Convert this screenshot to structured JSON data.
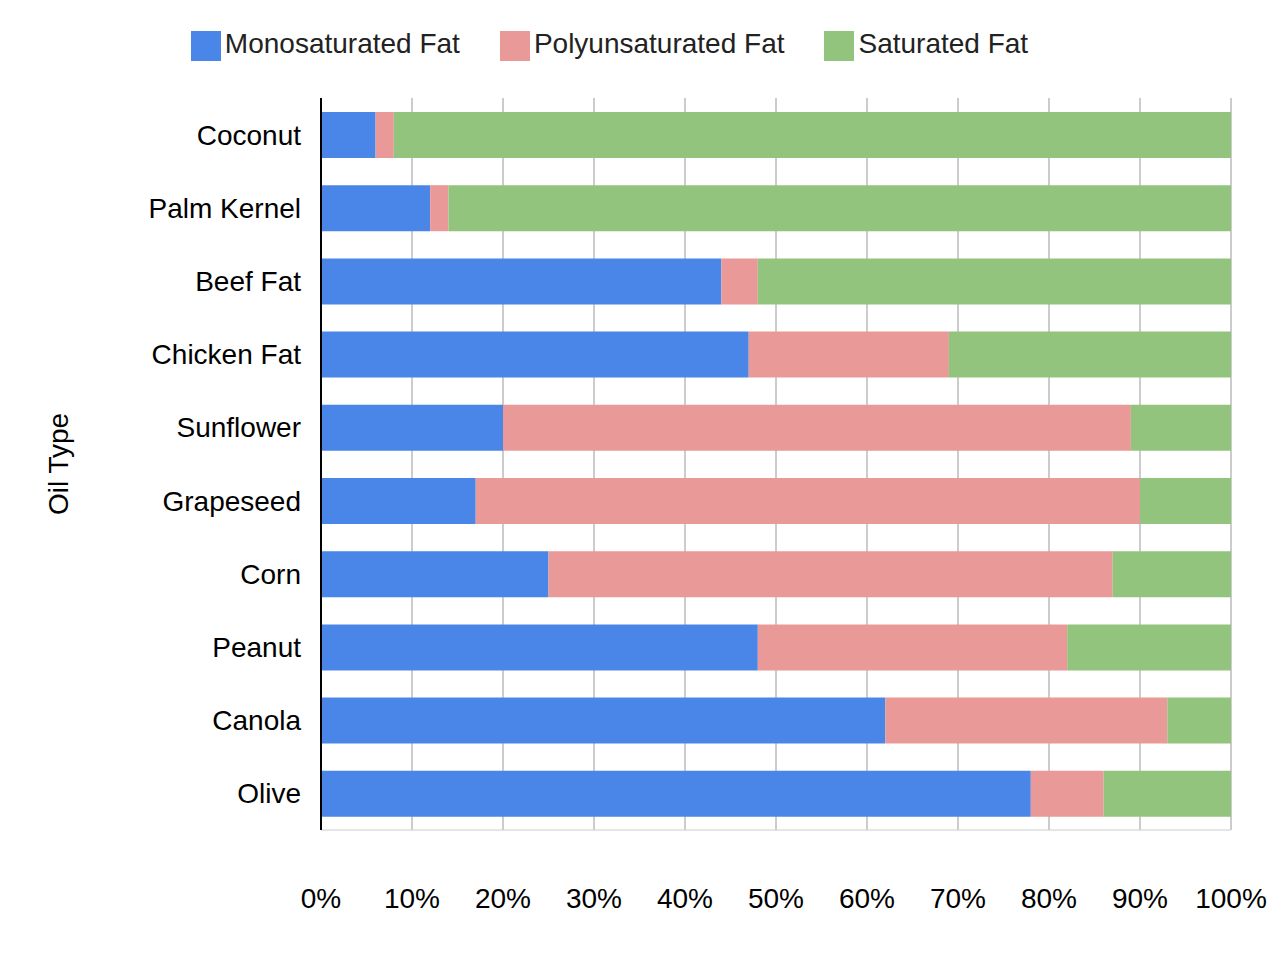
{
  "chart_data": {
    "type": "bar",
    "orientation": "horizontal",
    "stacked": true,
    "grid": true,
    "legend": "top",
    "y_label": "Oil Type",
    "categories": [
      "Coconut",
      "Palm Kernel",
      "Beef Fat",
      "Chicken Fat",
      "Sunflower",
      "Grapeseed",
      "Corn",
      "Peanut",
      "Canola",
      "Olive"
    ],
    "series": [
      {
        "name": "Monosaturated Fat",
        "color": "#4a86e8",
        "values": [
          6,
          12,
          44,
          47,
          20,
          17,
          25,
          48,
          62,
          78
        ]
      },
      {
        "name": "Polyunsaturated Fat",
        "color": "#ea9999",
        "values": [
          2,
          2,
          4,
          22,
          69,
          73,
          62,
          34,
          31,
          8
        ]
      },
      {
        "name": "Saturated Fat",
        "color": "#93c47d",
        "values": [
          92,
          86,
          52,
          31,
          11,
          10,
          13,
          18,
          7,
          14
        ]
      }
    ],
    "xlim": [
      0,
      100
    ],
    "xticks": [
      {
        "value": 0,
        "label": "0%"
      },
      {
        "value": 10,
        "label": "10%"
      },
      {
        "value": 20,
        "label": "20%"
      },
      {
        "value": 30,
        "label": "30%"
      },
      {
        "value": 40,
        "label": "40%"
      },
      {
        "value": 50,
        "label": "50%"
      },
      {
        "value": 60,
        "label": "60%"
      },
      {
        "value": 70,
        "label": "70%"
      },
      {
        "value": 80,
        "label": "80%"
      },
      {
        "value": 90,
        "label": "90%"
      },
      {
        "value": 100,
        "label": "100%"
      }
    ]
  }
}
